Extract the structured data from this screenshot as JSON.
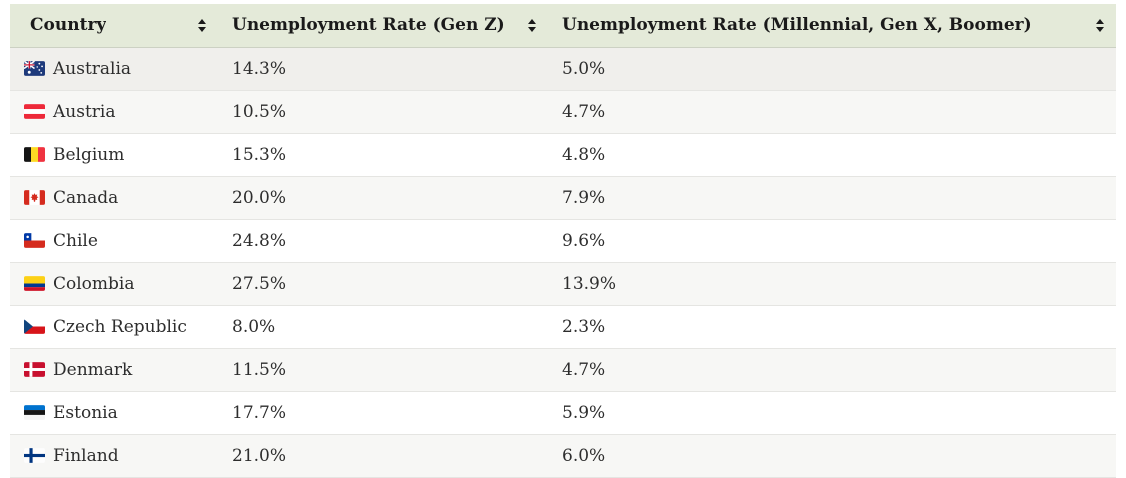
{
  "table": {
    "header": {
      "background_color": "#e4ead9",
      "text_color": "#1a1a1a",
      "sort_icon": "sort-up-down-arrows",
      "columns": [
        {
          "label": "Country"
        },
        {
          "label": "Unemployment Rate (Gen Z)"
        },
        {
          "label": "Unemployment Rate (Millennial, Gen X, Boomer)"
        }
      ]
    },
    "rows": [
      {
        "country": "Australia",
        "flag": "au",
        "flag_icon": "australia-flag-icon",
        "gen_z_rate": "14.3%",
        "older_gen_rate": "5.0%"
      },
      {
        "country": "Austria",
        "flag": "at",
        "flag_icon": "austria-flag-icon",
        "gen_z_rate": "10.5%",
        "older_gen_rate": "4.7%"
      },
      {
        "country": "Belgium",
        "flag": "be",
        "flag_icon": "belgium-flag-icon",
        "gen_z_rate": "15.3%",
        "older_gen_rate": "4.8%"
      },
      {
        "country": "Canada",
        "flag": "ca",
        "flag_icon": "canada-flag-icon",
        "gen_z_rate": "20.0%",
        "older_gen_rate": "7.9%"
      },
      {
        "country": "Chile",
        "flag": "cl",
        "flag_icon": "chile-flag-icon",
        "gen_z_rate": "24.8%",
        "older_gen_rate": "9.6%"
      },
      {
        "country": "Colombia",
        "flag": "co",
        "flag_icon": "colombia-flag-icon",
        "gen_z_rate": "27.5%",
        "older_gen_rate": "13.9%"
      },
      {
        "country": "Czech Republic",
        "flag": "cz",
        "flag_icon": "czech-republic-flag-icon",
        "gen_z_rate": "8.0%",
        "older_gen_rate": "2.3%"
      },
      {
        "country": "Denmark",
        "flag": "dk",
        "flag_icon": "denmark-flag-icon",
        "gen_z_rate": "11.5%",
        "older_gen_rate": "4.7%"
      },
      {
        "country": "Estonia",
        "flag": "ee",
        "flag_icon": "estonia-flag-icon",
        "gen_z_rate": "17.7%",
        "older_gen_rate": "5.9%"
      },
      {
        "country": "Finland",
        "flag": "fi",
        "flag_icon": "finland-flag-icon",
        "gen_z_rate": "21.0%",
        "older_gen_rate": "6.0%"
      }
    ],
    "row_styles": {
      "even_row_background": "#f7f7f5",
      "odd_row_background": "#ffffff",
      "hovered_row_background": "#f0efec",
      "row_border_color": "#e5e5e2",
      "hovered_row_index": 0
    }
  },
  "chart_data": {
    "type": "table",
    "columns": [
      "Country",
      "Unemployment Rate (Gen Z)",
      "Unemployment Rate (Millennial, Gen X, Boomer)"
    ],
    "rows": [
      [
        "Australia",
        "14.3%",
        "5.0%"
      ],
      [
        "Austria",
        "10.5%",
        "4.7%"
      ],
      [
        "Belgium",
        "15.3%",
        "4.8%"
      ],
      [
        "Canada",
        "20.0%",
        "7.9%"
      ],
      [
        "Chile",
        "24.8%",
        "9.6%"
      ],
      [
        "Colombia",
        "27.5%",
        "13.9%"
      ],
      [
        "Czech Republic",
        "8.0%",
        "2.3%"
      ],
      [
        "Denmark",
        "11.5%",
        "4.7%"
      ],
      [
        "Estonia",
        "17.7%",
        "5.9%"
      ],
      [
        "Finland",
        "21.0%",
        "6.0%"
      ]
    ]
  }
}
